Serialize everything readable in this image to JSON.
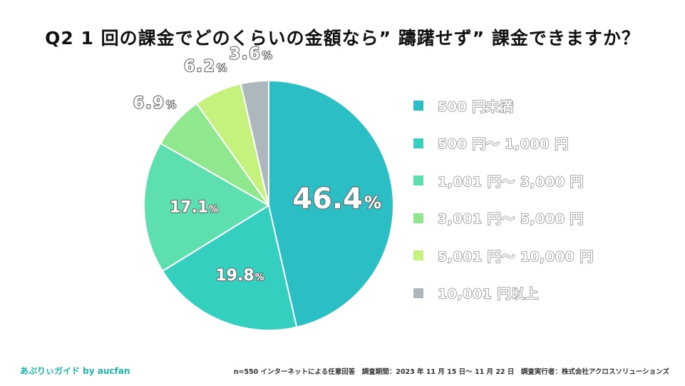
{
  "title": "Q2 1 回の課金でどのくらいの金額なら” 躊躇せず” 課金できますか？",
  "chart_data": {
    "type": "pie",
    "title": "Q2 1 回の課金でどのくらいの金額なら” 躊躇せず” 課金できますか？",
    "unit": "%",
    "start_angle_deg": 0,
    "direction": "clockwise",
    "slices": [
      {
        "label": "500 円未満",
        "value": 46.4,
        "value_text": "46.4",
        "color": "#2bbfc5",
        "label_style": "inside-large"
      },
      {
        "label": "500 円〜 1,000 円",
        "value": 19.8,
        "value_text": "19.8",
        "color": "#35cfbf",
        "label_style": "inside"
      },
      {
        "label": "1,001 円〜 3,000 円",
        "value": 17.1,
        "value_text": "17.1",
        "color": "#5ddfb0",
        "label_style": "inside"
      },
      {
        "label": "3,001 円〜 5,000 円",
        "value": 6.9,
        "value_text": "6.9",
        "color": "#8fe88e",
        "label_style": "outside"
      },
      {
        "label": "5,001 円〜 10,000 円",
        "value": 6.2,
        "value_text": "6.2",
        "color": "#c4f27c",
        "label_style": "outside"
      },
      {
        "label": "10,001 円以上",
        "value": 3.6,
        "value_text": "3.6",
        "color": "#acb8bb",
        "label_style": "outside"
      }
    ],
    "legend_position": "right"
  },
  "brand": "あぷりぃガイド by aucfan",
  "footnote": "n=550 インターネットによる任意回答　調査期間：2023 年 11 月 15 日〜 11 月 22 日　調査実行者：株式会社アクロスソリューションズ"
}
